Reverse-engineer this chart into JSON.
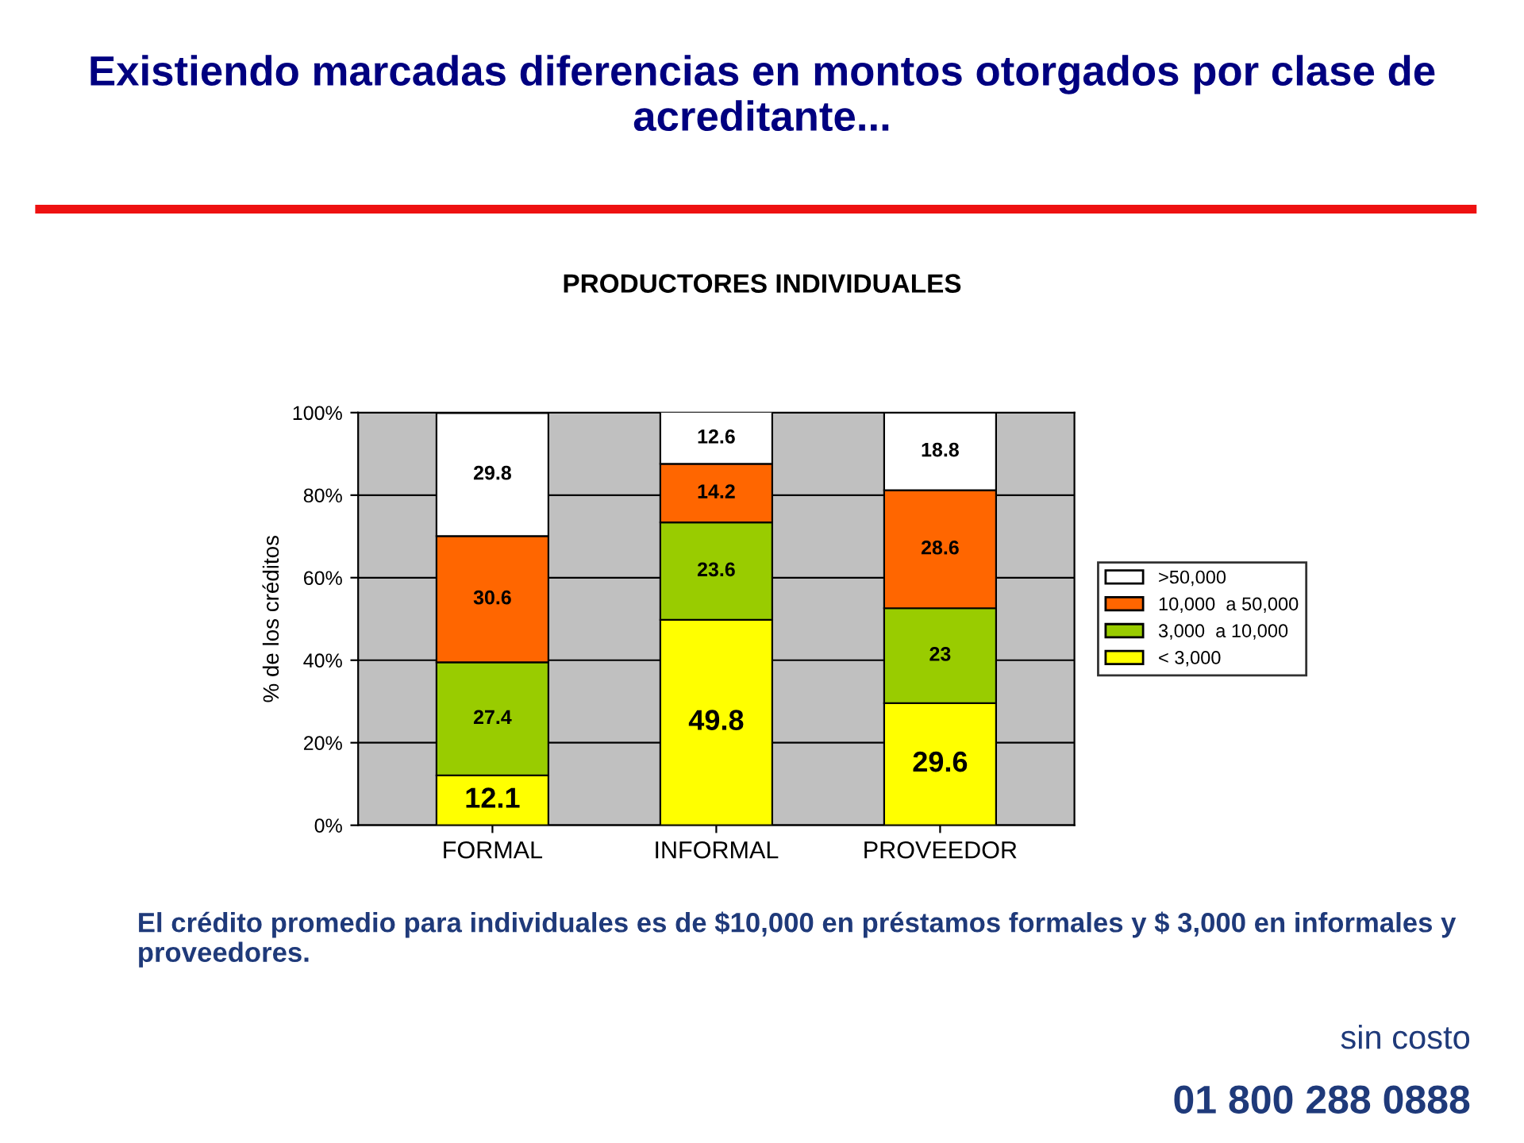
{
  "chart_data": {
    "type": "bar",
    "stacked": true,
    "title": "Existiendo marcadas diferencias en montos otorgados por clase de acreditante...",
    "subtitle": "PRODUCTORES INDIVIDUALES",
    "ylabel": "% de los créditos",
    "categories": [
      "FORMAL",
      "INFORMAL",
      "PROVEEDOR"
    ],
    "series": [
      {
        "name": "< 3,000",
        "color": "#ffff00",
        "values": [
          12.1,
          49.8,
          29.6
        ]
      },
      {
        "name": "3,000  a 10,000",
        "color": "#99cc00",
        "values": [
          27.4,
          23.6,
          23
        ]
      },
      {
        "name": "10,000  a 50,000",
        "color": "#ff6600",
        "values": [
          30.6,
          14.2,
          28.6
        ]
      },
      {
        "name": ">50,000",
        "color": "#ffffff",
        "values": [
          29.8,
          12.6,
          18.8
        ]
      }
    ],
    "ylim": [
      0,
      100
    ],
    "yticks": [
      {
        "value": 0,
        "label": "0%"
      },
      {
        "value": 20,
        "label": "20%"
      },
      {
        "value": 40,
        "label": "40%"
      },
      {
        "value": 60,
        "label": "60%"
      },
      {
        "value": 80,
        "label": "80%"
      },
      {
        "value": 100,
        "label": "100%"
      }
    ],
    "grid": "y",
    "legend": "right",
    "data_labels": true,
    "annotations": [
      "El crédito promedio para individuales es de $10,000 en préstamos formales y $ 3,000 en informales y proveedores.",
      "sin costo",
      "01 800 288 0888"
    ]
  }
}
